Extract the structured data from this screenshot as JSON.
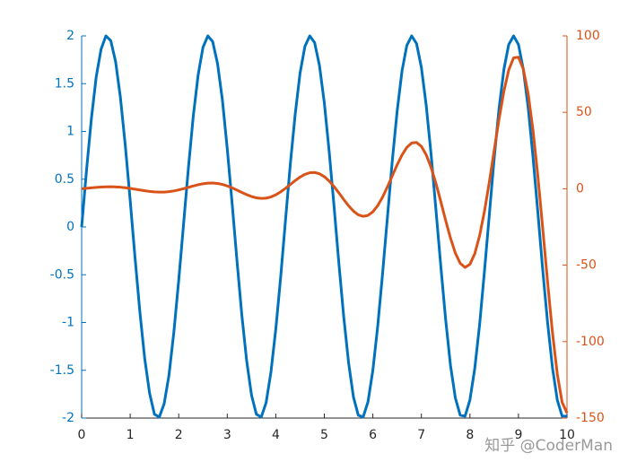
{
  "chart_data": {
    "type": "line",
    "x": [
      0,
      0.1,
      0.2,
      0.3,
      0.4,
      0.5,
      0.6,
      0.7,
      0.8,
      0.9,
      1,
      1.1,
      1.2,
      1.3,
      1.4,
      1.5,
      1.6,
      1.7,
      1.8,
      1.9,
      2,
      2.1,
      2.2,
      2.3,
      2.4,
      2.5,
      2.6,
      2.7,
      2.8,
      2.9,
      3,
      3.1,
      3.2,
      3.3,
      3.4,
      3.5,
      3.6,
      3.7,
      3.8,
      3.9,
      4,
      4.1,
      4.2,
      4.3,
      4.4,
      4.5,
      4.6,
      4.7,
      4.8,
      4.9,
      5,
      5.1,
      5.2,
      5.3,
      5.4,
      5.5,
      5.6,
      5.7,
      5.8,
      5.9,
      6,
      6.1,
      6.2,
      6.3,
      6.4,
      6.5,
      6.6,
      6.7,
      6.8,
      6.9,
      7,
      7.1,
      7.2,
      7.3,
      7.4,
      7.5,
      7.6,
      7.7,
      7.8,
      7.9,
      8,
      8.1,
      8.2,
      8.3,
      8.4,
      8.5,
      8.6,
      8.7,
      8.8,
      8.9,
      9,
      9.1,
      9.2,
      9.3,
      9.4,
      9.5,
      9.6,
      9.7,
      9.8,
      9.9,
      10
    ],
    "series": [
      {
        "color": "#0072BD",
        "axis": "y",
        "values": [
          0,
          0.59,
          1.13,
          1.57,
          1.86,
          2.0,
          1.95,
          1.73,
          1.35,
          0.85,
          0.28,
          -0.32,
          -0.89,
          -1.38,
          -1.74,
          -1.96,
          -1.99,
          -1.85,
          -1.55,
          -1.1,
          -0.56,
          0.03,
          0.62,
          1.16,
          1.59,
          1.88,
          2.0,
          1.94,
          1.71,
          1.33,
          0.82,
          0.25,
          -0.35,
          -0.92,
          -1.4,
          -1.76,
          -1.96,
          -1.99,
          -1.84,
          -1.52,
          -1.07,
          -0.53,
          0.07,
          0.66,
          1.18,
          1.61,
          1.89,
          2.0,
          1.93,
          1.69,
          1.3,
          0.79,
          0.22,
          -0.38,
          -0.94,
          -1.42,
          -1.78,
          -1.97,
          -1.99,
          -1.83,
          -1.5,
          -1.04,
          -0.49,
          0.1,
          0.69,
          1.21,
          1.63,
          1.9,
          2.0,
          1.92,
          1.67,
          1.27,
          0.76,
          0.18,
          -0.41,
          -0.97,
          -1.45,
          -1.79,
          -1.97,
          -1.98,
          -1.81,
          -1.48,
          -1.02,
          -0.46,
          0.13,
          0.72,
          1.24,
          1.65,
          1.91,
          2.0,
          1.91,
          1.65,
          1.25,
          0.73,
          0.15,
          -0.45,
          -1.0,
          -1.47,
          -1.81,
          -1.98,
          -1.98
        ]
      },
      {
        "color": "#D95319",
        "axis": "y2",
        "values": [
          0,
          0.31,
          0.62,
          0.91,
          1.14,
          1.28,
          1.31,
          1.22,
          1.01,
          0.67,
          0.23,
          -0.27,
          -0.81,
          -1.32,
          -1.76,
          -2.07,
          -2.22,
          -2.17,
          -1.9,
          -1.42,
          -0.76,
          0.05,
          0.94,
          1.83,
          2.64,
          3.27,
          3.66,
          3.74,
          3.47,
          2.83,
          1.85,
          0.59,
          -0.86,
          -2.38,
          -3.83,
          -5.06,
          -5.93,
          -6.32,
          -6.15,
          -5.36,
          -3.97,
          -2.04,
          0.27,
          2.81,
          5.34,
          7.63,
          9.41,
          10.48,
          10.65,
          9.8,
          7.92,
          5.08,
          1.45,
          -2.7,
          -7.03,
          -11.13,
          -14.6,
          -17.01,
          -18.04,
          -17.43,
          -15.08,
          -11.03,
          -5.48,
          1.18,
          8.42,
          15.62,
          22.06,
          27.05,
          29.96,
          30.28,
          27.71,
          22.19,
          13.95,
          3.5,
          -8.38,
          -20.72,
          -32.34,
          -42.07,
          -48.76,
          -51.44,
          -49.44,
          -42.46,
          -30.65,
          -14.64,
          4.48,
          25.17,
          45.61,
          63.79,
          77.73,
          85.62,
          86.09,
          78.29,
          62.11,
          38.24,
          8.15,
          -25.87,
          -60.97,
          -93.88,
          -121.22,
          -139.71,
          -146.63
        ]
      }
    ],
    "xlim": [
      0,
      10
    ],
    "xticks": [
      0,
      1,
      2,
      3,
      4,
      5,
      6,
      7,
      8,
      9,
      10
    ],
    "ylim": [
      -2,
      2
    ],
    "yticks": [
      -2,
      -1.5,
      -1,
      -0.5,
      0,
      0.5,
      1,
      1.5,
      2
    ],
    "y2lim": [
      -150,
      100
    ],
    "y2ticks": [
      -150,
      -100,
      -50,
      0,
      50,
      100
    ],
    "watermark": "知乎 @CoderMan"
  }
}
